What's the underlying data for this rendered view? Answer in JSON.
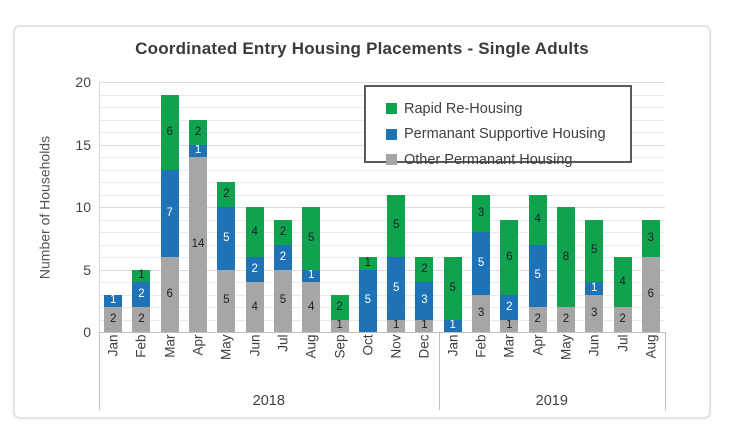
{
  "chart_data": {
    "type": "bar",
    "stacked": true,
    "title": "Coordinated Entry Housing Placements - Single Adults",
    "ylabel": "Number of Households",
    "xlabel": "",
    "ylim": [
      0,
      20
    ],
    "yticks": [
      0,
      5,
      10,
      15,
      20
    ],
    "grid": "horizontal-minor-every-1",
    "legend_position": "inside-top-right",
    "legend_order": [
      "Rapid Re-Housing",
      "Permanant Supportive Housing",
      "Other Permanant Housing"
    ],
    "categories": [
      "Jan",
      "Feb",
      "Mar",
      "Apr",
      "May",
      "Jun",
      "Jul",
      "Aug",
      "Sep",
      "Oct",
      "Nov",
      "Dec",
      "Jan",
      "Feb",
      "Mar",
      "Apr",
      "May",
      "Jun",
      "Jul",
      "Aug"
    ],
    "year_groups": [
      {
        "label": "2018",
        "span": 12
      },
      {
        "label": "2019",
        "span": 8
      }
    ],
    "series": [
      {
        "name": "Other Permanant Housing",
        "color": "#a6a6a6",
        "label_color": "#1f1f1f",
        "values": [
          2,
          2,
          6,
          14,
          5,
          4,
          5,
          4,
          1,
          0,
          1,
          1,
          0,
          3,
          1,
          2,
          2,
          3,
          2,
          6
        ]
      },
      {
        "name": "Permanant Supportive Housing",
        "color": "#1e73b6",
        "label_color": "#ffffff",
        "values": [
          1,
          2,
          7,
          1,
          5,
          2,
          2,
          1,
          0,
          5,
          5,
          3,
          1,
          5,
          2,
          5,
          0,
          1,
          0,
          0
        ]
      },
      {
        "name": "Rapid Re-Housing",
        "color": "#0fa24f",
        "label_color": "#1f1f1f",
        "values": [
          0,
          1,
          6,
          2,
          2,
          4,
          2,
          5,
          2,
          1,
          5,
          2,
          5,
          3,
          6,
          4,
          8,
          5,
          4,
          3
        ]
      }
    ],
    "totals": [
      3,
      5,
      19,
      17,
      12,
      10,
      9,
      10,
      3,
      6,
      11,
      6,
      6,
      11,
      9,
      11,
      10,
      9,
      6,
      9
    ]
  }
}
